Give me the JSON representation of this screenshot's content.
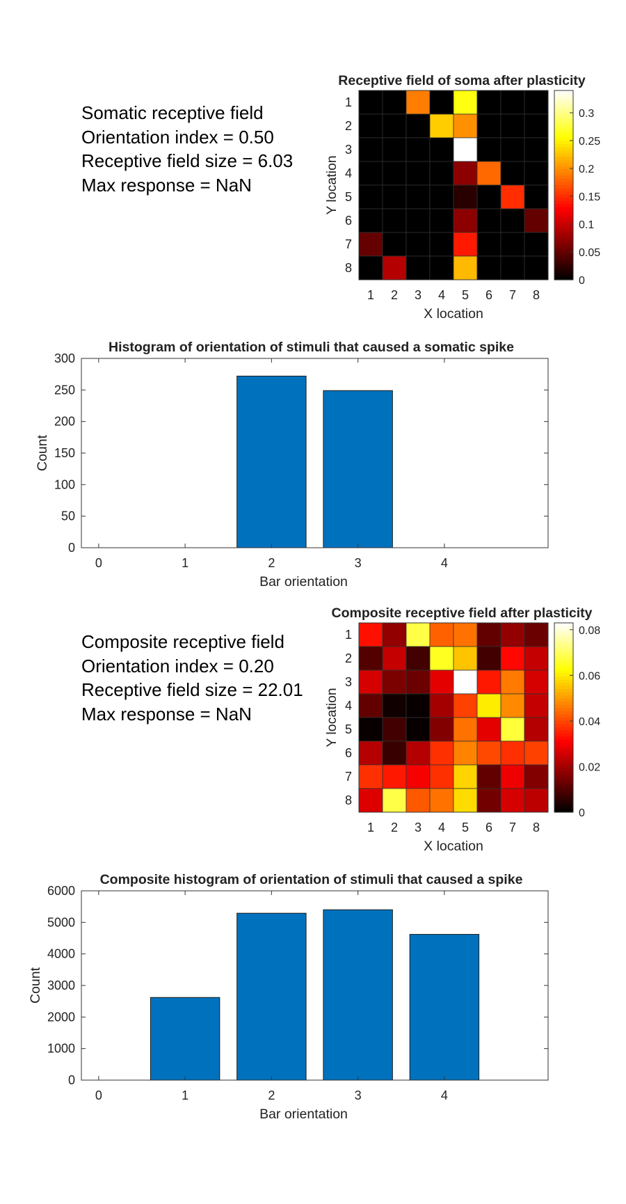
{
  "info_panels": [
    {
      "line1": "Somatic receptive field",
      "line2": "Orientation index = 0.50",
      "line3": "Receptive field size = 6.03",
      "line4": "Max response = NaN"
    },
    {
      "line1": "Composite receptive field",
      "line2": "Orientation index = 0.20",
      "line3": "Receptive field size = 22.01",
      "line4": "Max response = NaN"
    }
  ],
  "colors": {
    "bar_fill": "#0072BD",
    "colormap": "hot"
  },
  "chart_data": [
    {
      "type": "heatmap",
      "title": "Receptive field of soma after plasticity",
      "xlabel": "X location",
      "ylabel": "Y location",
      "x_ticks": [
        "1",
        "2",
        "3",
        "4",
        "5",
        "6",
        "7",
        "8"
      ],
      "y_ticks": [
        "1",
        "2",
        "3",
        "4",
        "5",
        "6",
        "7",
        "8"
      ],
      "clim": [
        0,
        0.34
      ],
      "colorbar_ticks": [
        0,
        0.05,
        0.1,
        0.15,
        0.2,
        0.25,
        0.3
      ],
      "colorbar_tick_labels": [
        "0",
        "0.05",
        "0.1",
        "0.15",
        "0.2",
        "0.25",
        "0.3"
      ],
      "values": [
        [
          0,
          0,
          0.19,
          0,
          0.26,
          0,
          0,
          0
        ],
        [
          0,
          0,
          0,
          0.23,
          0.2,
          0,
          0,
          0
        ],
        [
          0,
          0,
          0,
          0,
          0.34,
          0,
          0,
          0
        ],
        [
          0,
          0,
          0,
          0,
          0.07,
          0.18,
          0,
          0
        ],
        [
          0,
          0,
          0,
          0,
          0.02,
          0,
          0.15,
          0
        ],
        [
          0,
          0,
          0,
          0,
          0.07,
          0,
          0,
          0.05
        ],
        [
          0.05,
          0,
          0,
          0,
          0.14,
          0,
          0,
          0
        ],
        [
          0,
          0.09,
          0,
          0,
          0.22,
          0,
          0,
          0
        ]
      ]
    },
    {
      "type": "bar",
      "title": "Histogram of orientation of stimuli that caused a somatic spike",
      "xlabel": "Bar orientation",
      "ylabel": "Count",
      "categories": [
        0,
        1,
        2,
        3,
        4
      ],
      "x_ticks": [
        "0",
        "1",
        "2",
        "3",
        "4"
      ],
      "values": [
        0,
        0,
        272,
        249,
        0
      ],
      "xlim": [
        -0.2,
        5.2
      ],
      "ylim": [
        0,
        300
      ],
      "y_ticks": [
        0,
        50,
        100,
        150,
        200,
        250,
        300
      ]
    },
    {
      "type": "heatmap",
      "title": "Composite receptive field after plasticity",
      "xlabel": "X location",
      "ylabel": "Y location",
      "x_ticks": [
        "1",
        "2",
        "3",
        "4",
        "5",
        "6",
        "7",
        "8"
      ],
      "y_ticks": [
        "1",
        "2",
        "3",
        "4",
        "5",
        "6",
        "7",
        "8"
      ],
      "clim": [
        0,
        0.083
      ],
      "colorbar_ticks": [
        0,
        0.02,
        0.04,
        0.06,
        0.08
      ],
      "colorbar_tick_labels": [
        "0",
        "0.02",
        "0.04",
        "0.06",
        "0.08"
      ],
      "values": [
        [
          0.033,
          0.018,
          0.068,
          0.043,
          0.045,
          0.012,
          0.018,
          0.013
        ],
        [
          0.01,
          0.024,
          0.008,
          0.065,
          0.055,
          0.008,
          0.032,
          0.024
        ],
        [
          0.026,
          0.015,
          0.013,
          0.028,
          0.083,
          0.034,
          0.046,
          0.026
        ],
        [
          0.012,
          0.002,
          0.001,
          0.02,
          0.039,
          0.06,
          0.048,
          0.024
        ],
        [
          0.001,
          0.008,
          0.001,
          0.016,
          0.045,
          0.028,
          0.067,
          0.022
        ],
        [
          0.022,
          0.007,
          0.022,
          0.037,
          0.047,
          0.04,
          0.037,
          0.039
        ],
        [
          0.037,
          0.034,
          0.03,
          0.037,
          0.057,
          0.012,
          0.029,
          0.016
        ],
        [
          0.027,
          0.068,
          0.042,
          0.045,
          0.058,
          0.014,
          0.026,
          0.023
        ]
      ]
    },
    {
      "type": "bar",
      "title": "Composite histogram of orientation of stimuli that caused a spike",
      "xlabel": "Bar orientation",
      "ylabel": "Count",
      "categories": [
        0,
        1,
        2,
        3,
        4
      ],
      "x_ticks": [
        "0",
        "1",
        "2",
        "3",
        "4"
      ],
      "values": [
        0,
        2620,
        5290,
        5400,
        4620
      ],
      "xlim": [
        -0.2,
        5.2
      ],
      "ylim": [
        0,
        6000
      ],
      "y_ticks": [
        0,
        1000,
        2000,
        3000,
        4000,
        5000,
        6000
      ]
    }
  ]
}
